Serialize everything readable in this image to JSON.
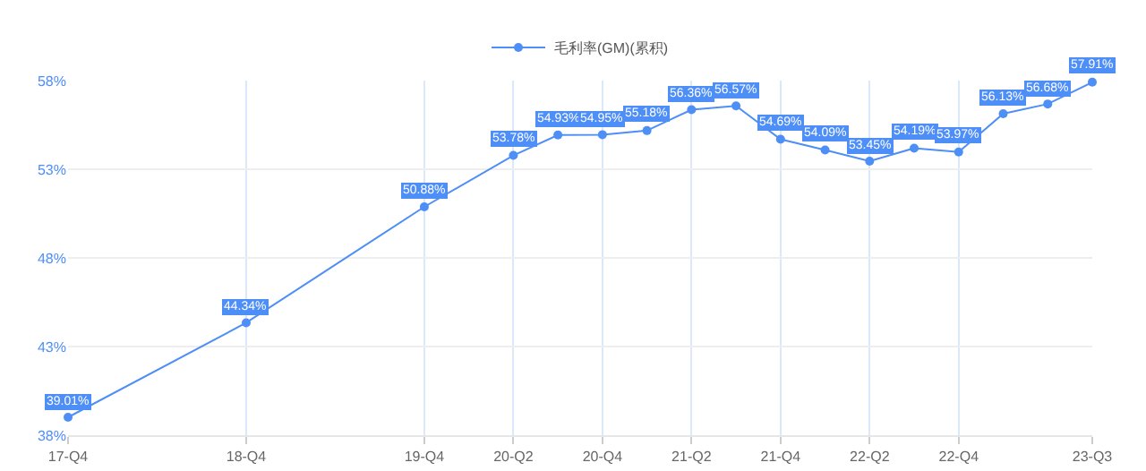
{
  "chart_data": {
    "type": "line",
    "categories": [
      "17-Q4",
      null,
      null,
      null,
      "18-Q4",
      null,
      null,
      null,
      "19-Q4",
      null,
      "20-Q2",
      null,
      "20-Q4",
      null,
      "21-Q2",
      null,
      "21-Q4",
      null,
      "22-Q2",
      null,
      "22-Q4",
      null,
      null,
      "23-Q3"
    ],
    "series": [
      {
        "name": "毛利率(GM)(累积)",
        "color": "#4e8ef7",
        "values": [
          39.01,
          null,
          null,
          null,
          44.34,
          null,
          null,
          null,
          50.88,
          null,
          53.78,
          54.93,
          54.95,
          55.18,
          56.36,
          56.57,
          54.69,
          54.09,
          53.45,
          54.19,
          53.97,
          56.13,
          56.68,
          57.91
        ],
        "value_labels": [
          "39.01%",
          null,
          null,
          null,
          "44.34%",
          null,
          null,
          null,
          "50.88%",
          null,
          "53.78%",
          "54.93%",
          "54.95%",
          "55.18%",
          "56.36%",
          "56.57%",
          "54.69%",
          "54.09%",
          "53.45%",
          "54.19%",
          "53.97%",
          "56.13%",
          "56.68%",
          "57.91%"
        ]
      }
    ],
    "ylim": [
      38,
      58
    ],
    "yticks": [
      {
        "value": 38,
        "label": "38%"
      },
      {
        "value": 43,
        "label": "43%"
      },
      {
        "value": 48,
        "label": "48%"
      },
      {
        "value": 53,
        "label": "53%"
      },
      {
        "value": 58,
        "label": "58%"
      }
    ],
    "grid": true,
    "legend": "top",
    "marker": "circle",
    "line_style": "solid"
  }
}
